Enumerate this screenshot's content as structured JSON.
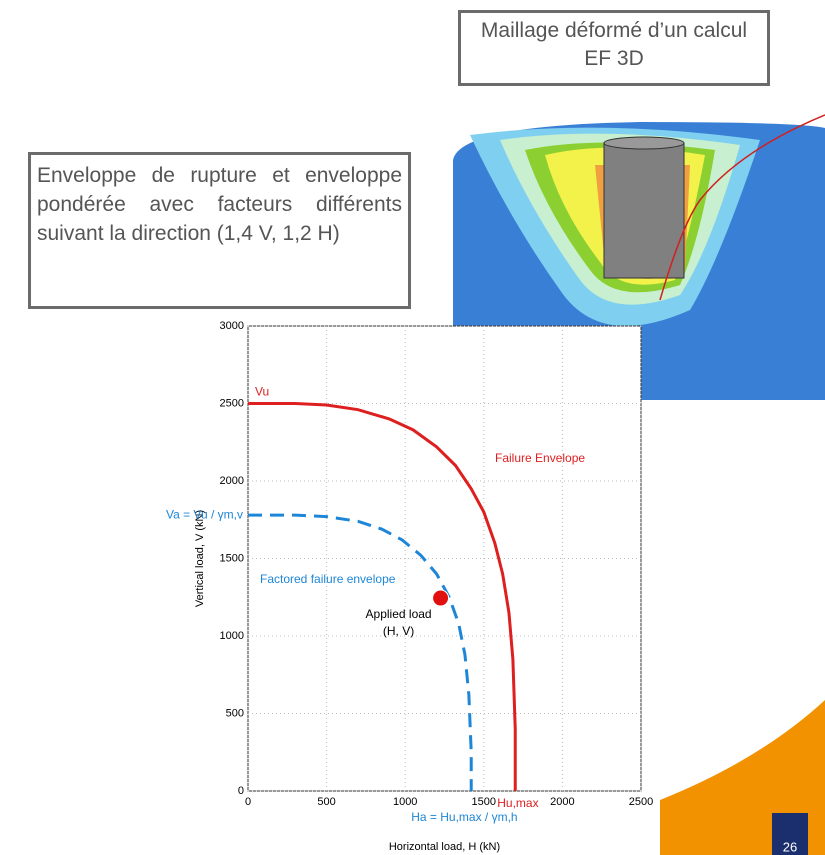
{
  "boxes": {
    "mesh_caption": "Maillage déformé d’un calcul EF 3D",
    "envelope_caption": "Enveloppe de rupture et enveloppe pondérée avec facteurs différents suivant la direction (1,4 V, 1,2 H)"
  },
  "page_number": "26",
  "chart_data": {
    "type": "line",
    "xlabel": "Horizontal load, H (kN)",
    "ylabel": "Vertical load, V (kN)",
    "xlim": [
      0,
      2500
    ],
    "ylim": [
      0,
      3000
    ],
    "xticks": [
      0,
      500,
      1000,
      1500,
      2000,
      2500
    ],
    "yticks": [
      0,
      500,
      1000,
      1500,
      2000,
      2500,
      3000
    ],
    "grid": true,
    "series": [
      {
        "name": "Failure Envelope",
        "color": "#dd1f1f",
        "dashed": false,
        "x": [
          0,
          300,
          500,
          700,
          900,
          1050,
          1200,
          1320,
          1420,
          1500,
          1570,
          1620,
          1660,
          1685,
          1700,
          1700
        ],
        "values": [
          2500,
          2500,
          2490,
          2460,
          2400,
          2330,
          2220,
          2100,
          1950,
          1800,
          1600,
          1400,
          1150,
          850,
          400,
          0
        ]
      },
      {
        "name": "Factored failure envelope",
        "color": "#1e86d6",
        "dashed": true,
        "x": [
          0,
          300,
          500,
          700,
          850,
          980,
          1100,
          1200,
          1280,
          1340,
          1380,
          1405,
          1420,
          1420
        ],
        "values": [
          1780,
          1780,
          1770,
          1740,
          1690,
          1620,
          1520,
          1400,
          1250,
          1080,
          880,
          620,
          250,
          0
        ]
      }
    ],
    "points": [
      {
        "label": [
          "Applied load",
          "(H, V)"
        ],
        "x": 1225,
        "y": 1245,
        "color": "#e01010"
      }
    ],
    "annotations": {
      "vu": "Vu",
      "hu_max": "Hu,max",
      "va": "Va = Vu / γm,v",
      "ha": "Ha = Hu,max / γm,h"
    }
  }
}
